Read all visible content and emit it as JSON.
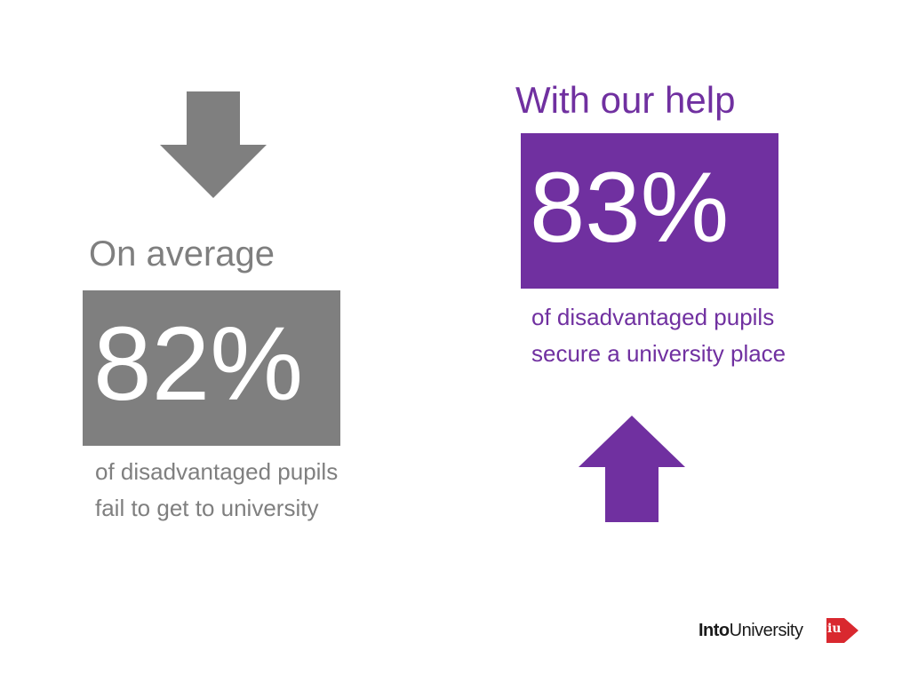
{
  "left": {
    "heading": "On average",
    "percentage": "82%",
    "caption": "of disadvantaged pupils fail to get to university",
    "color": "#7f7f7f",
    "arrow": "arrow-down-icon"
  },
  "right": {
    "heading": "With our help",
    "percentage": "83%",
    "caption": "of disadvantaged pupils secure a university place",
    "color": "#7030a0",
    "arrow": "arrow-up-icon"
  },
  "logo": {
    "bold_text": "Into",
    "text": "University",
    "mark": "iu",
    "mark_color": "#d9282f"
  }
}
